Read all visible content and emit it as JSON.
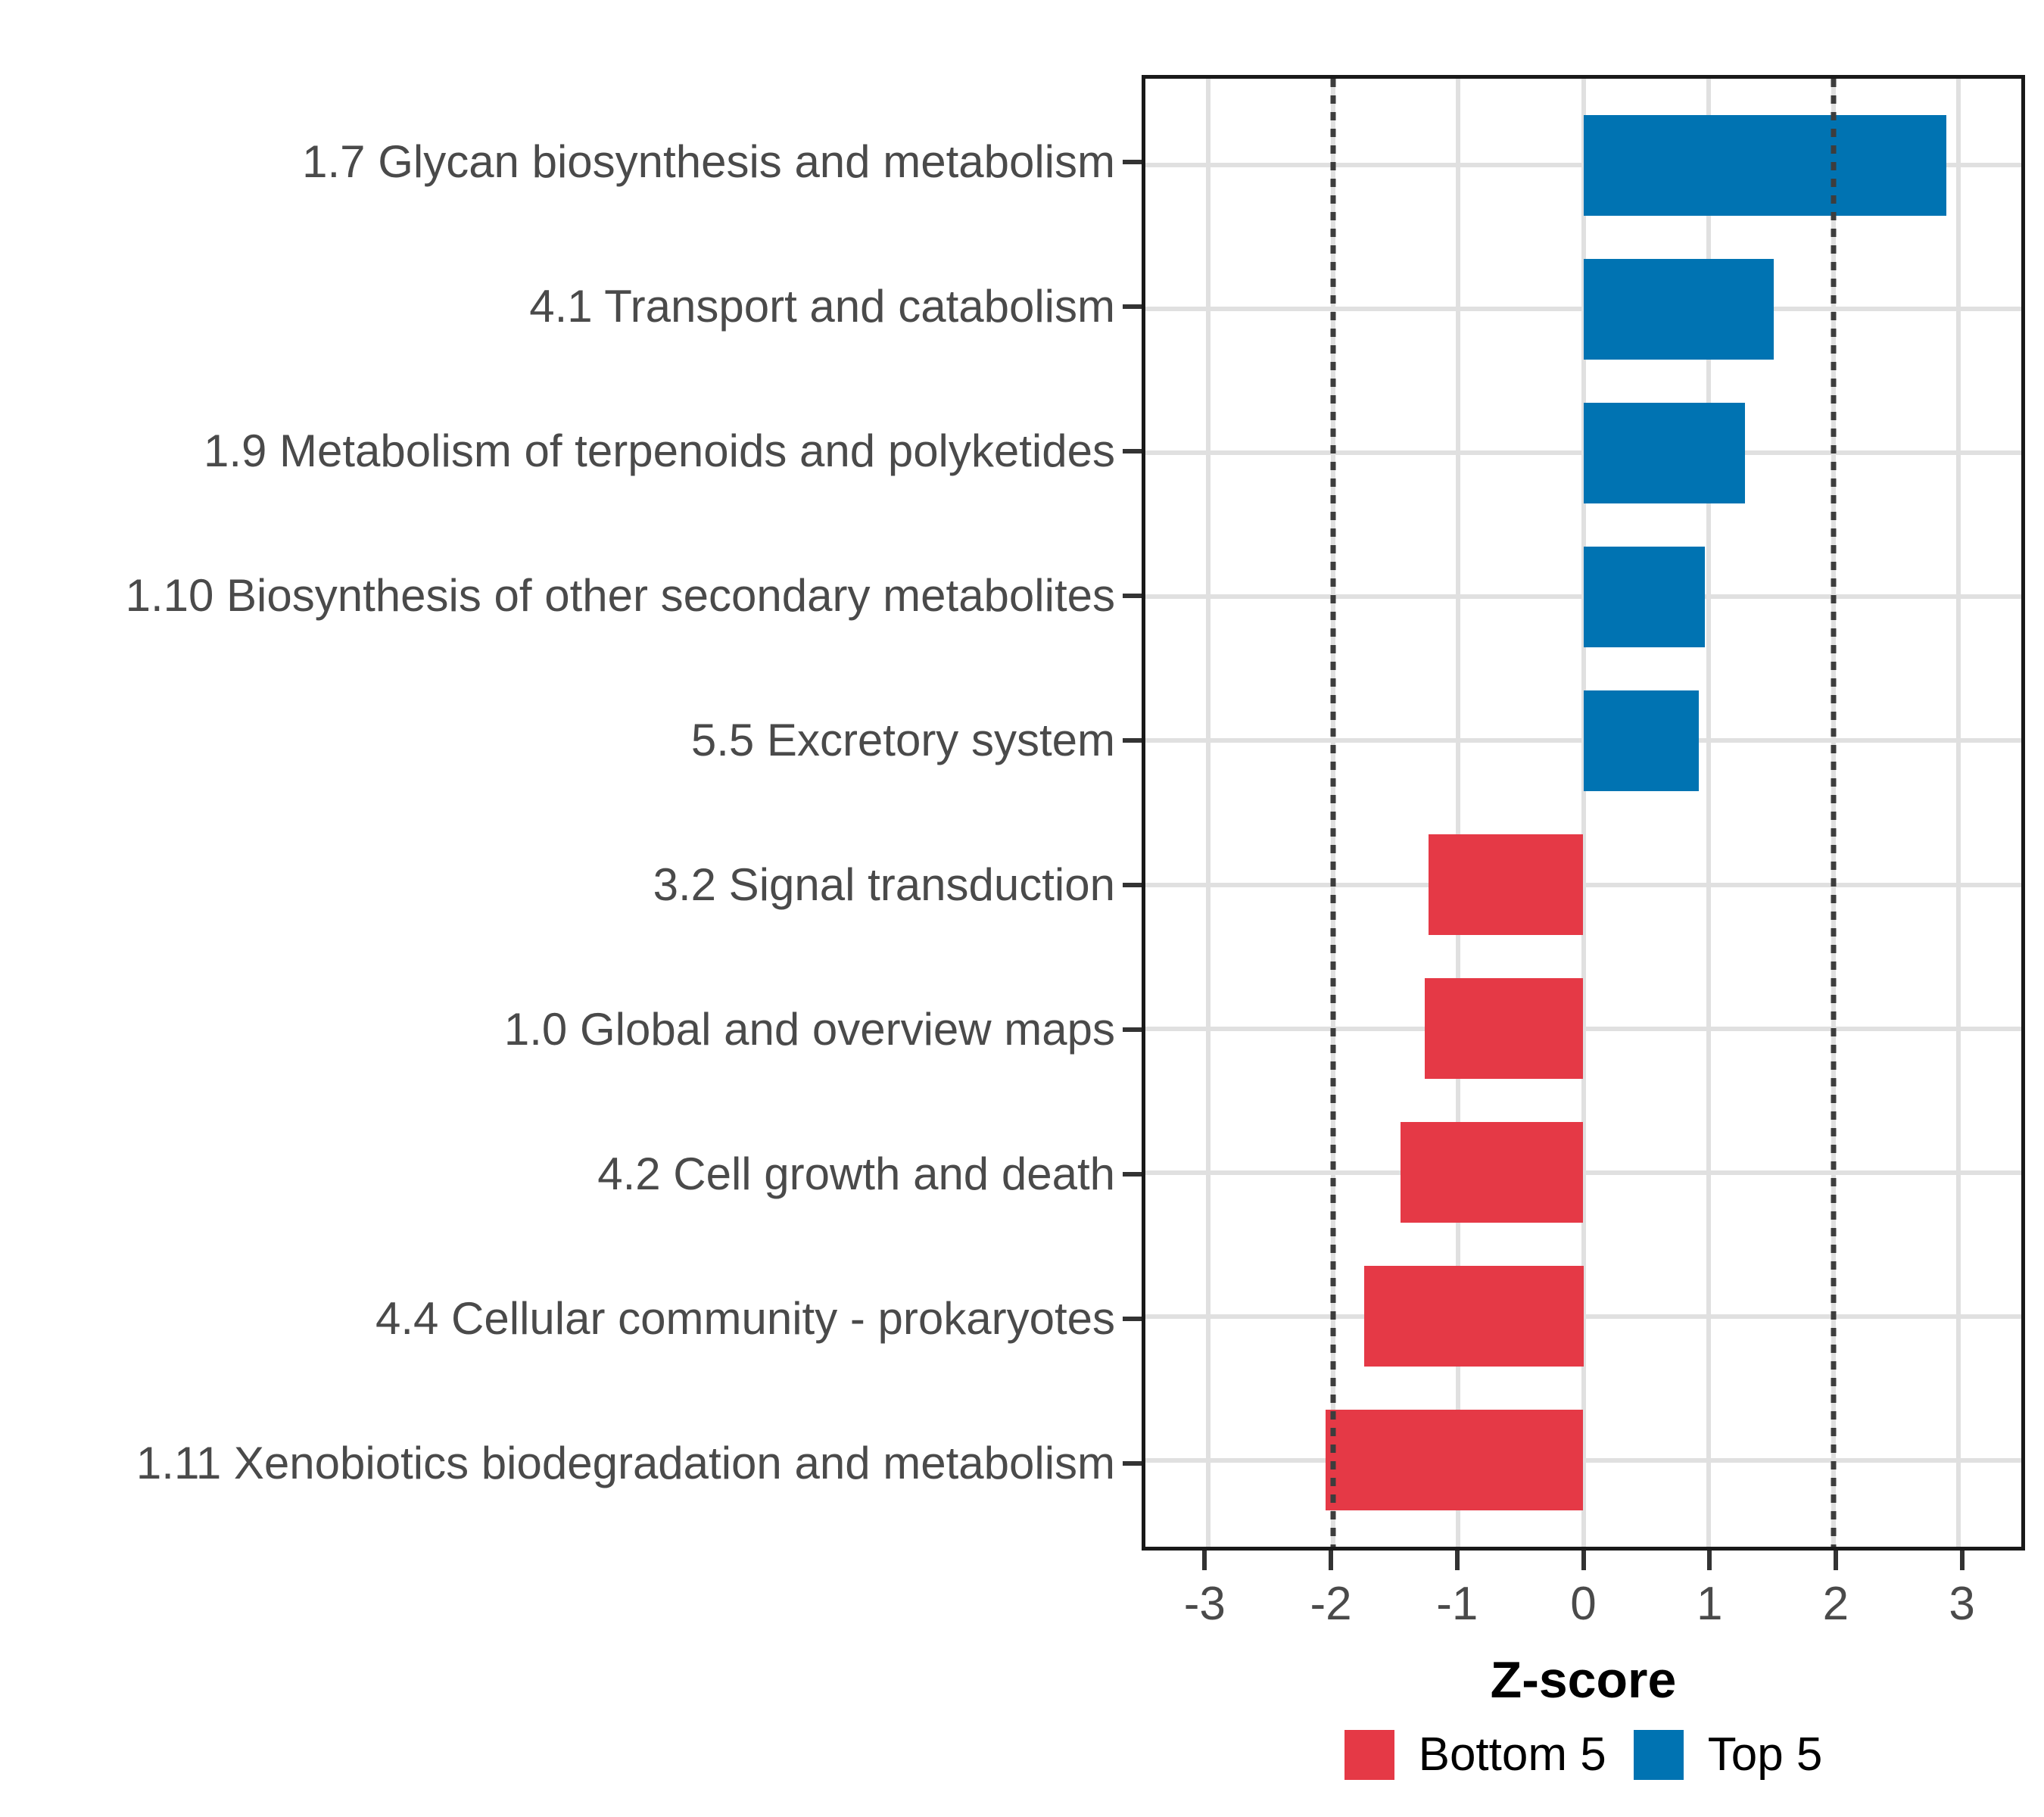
{
  "figure": {
    "background": "#ffffff"
  },
  "chart_data": {
    "type": "bar",
    "orientation": "horizontal",
    "title": "",
    "xlabel": "Z-score",
    "ylabel": "",
    "xlim": [
      -3.5,
      3.5
    ],
    "x_ticks": [
      -3,
      -2,
      -1,
      0,
      1,
      2,
      3
    ],
    "grid": true,
    "reference_lines": {
      "values": [
        -2,
        2
      ],
      "style": "dotted",
      "color": "#3d3d3d"
    },
    "categories": [
      "1.7 Glycan biosynthesis and metabolism",
      "4.1 Transport and catabolism",
      "1.9 Metabolism of terpenoids and polyketides",
      "1.10 Biosynthesis of other secondary metabolites",
      "5.5 Excretory system",
      "3.2 Signal transduction",
      "1.0 Global and overview maps",
      "4.2 Cell growth and death",
      "4.4 Cellular community - prokaryotes",
      "1.11 Xenobiotics biodegradation and metabolism"
    ],
    "values": [
      2.9,
      1.52,
      1.29,
      0.97,
      0.92,
      -1.24,
      -1.27,
      -1.46,
      -1.75,
      -2.06
    ],
    "groups": [
      "Top 5",
      "Top 5",
      "Top 5",
      "Top 5",
      "Top 5",
      "Bottom 5",
      "Bottom 5",
      "Bottom 5",
      "Bottom 5",
      "Bottom 5"
    ],
    "colors": {
      "Top 5": "#0073b2",
      "Bottom 5": "#e53946"
    },
    "legend_position": "bottom",
    "legend": [
      {
        "label": "Bottom 5",
        "color": "#e53946"
      },
      {
        "label": "Top 5",
        "color": "#0073b2"
      }
    ]
  }
}
